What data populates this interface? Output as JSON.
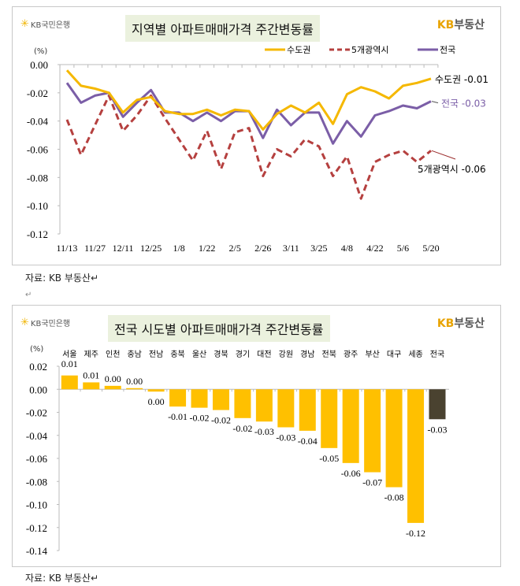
{
  "brand": {
    "bank": "KB국민은행",
    "bank_mark": "KB",
    "realestate_prefix": "KB",
    "realestate_suffix": "부동산"
  },
  "captions": [
    "자료: KB 부동산↵",
    "자료: KB 부동산↵"
  ],
  "paragraph_mark": "↵",
  "chart_data": [
    {
      "type": "line",
      "title": "지역별 아파트매매가격 주간변동률",
      "ylabel": "(%)",
      "ylim": [
        -0.12,
        0.0
      ],
      "yticks": [
        "0.00",
        "-0.02",
        "-0.04",
        "-0.06",
        "-0.08",
        "-0.10",
        "-0.12"
      ],
      "x_tick_labels": [
        "11/13",
        "11/27",
        "12/11",
        "12/25",
        "1/8",
        "1/22",
        "2/5",
        "2/26",
        "3/11",
        "3/25",
        "4/8",
        "4/22",
        "5/6",
        "5/20"
      ],
      "legend_position": "top-right",
      "grid": false,
      "series": [
        {
          "name": "수도권",
          "color": "#f5b800",
          "style": "solid",
          "end_label": "수도권 -0.01",
          "values": [
            -0.004,
            -0.015,
            -0.017,
            -0.02,
            -0.034,
            -0.025,
            -0.023,
            -0.033,
            -0.035,
            -0.035,
            -0.032,
            -0.036,
            -0.032,
            -0.033,
            -0.046,
            -0.035,
            -0.029,
            -0.034,
            -0.027,
            -0.042,
            -0.021,
            -0.016,
            -0.019,
            -0.024,
            -0.015,
            -0.013,
            -0.01
          ]
        },
        {
          "name": "5개광역시",
          "color": "#b5403f",
          "style": "dashed",
          "end_label": "5개광역시 -0.06",
          "values": [
            -0.039,
            -0.064,
            -0.043,
            -0.022,
            -0.047,
            -0.036,
            -0.022,
            -0.038,
            -0.053,
            -0.068,
            -0.047,
            -0.074,
            -0.048,
            -0.045,
            -0.079,
            -0.06,
            -0.065,
            -0.053,
            -0.058,
            -0.079,
            -0.065,
            -0.095,
            -0.069,
            -0.064,
            -0.061,
            -0.069,
            -0.061
          ]
        },
        {
          "name": "전국",
          "color": "#7b5ea7",
          "style": "solid",
          "end_label": "전국 -0.03",
          "values": [
            -0.013,
            -0.027,
            -0.022,
            -0.02,
            -0.037,
            -0.027,
            -0.018,
            -0.034,
            -0.034,
            -0.04,
            -0.034,
            -0.04,
            -0.033,
            -0.033,
            -0.052,
            -0.032,
            -0.043,
            -0.034,
            -0.034,
            -0.056,
            -0.04,
            -0.051,
            -0.036,
            -0.033,
            -0.029,
            -0.031,
            -0.026
          ]
        }
      ]
    },
    {
      "type": "bar",
      "title": "전국 시도별 아파트매매가격 주간변동률",
      "ylabel": "(%)",
      "ylim": [
        -0.14,
        0.02
      ],
      "yticks": [
        "0.02",
        "0.00",
        "-0.02",
        "-0.04",
        "-0.06",
        "-0.08",
        "-0.10",
        "-0.12",
        "-0.14"
      ],
      "grid": false,
      "categories": [
        "서울",
        "제주",
        "인천",
        "충남",
        "전남",
        "충북",
        "울산",
        "경북",
        "경기",
        "대전",
        "강원",
        "경남",
        "전북",
        "광주",
        "부산",
        "대구",
        "세종",
        "전국"
      ],
      "values": [
        0.012,
        0.006,
        0.003,
        0.001,
        -0.002,
        -0.015,
        -0.016,
        -0.018,
        -0.025,
        -0.028,
        -0.033,
        -0.036,
        -0.051,
        -0.064,
        -0.072,
        -0.085,
        -0.116,
        -0.026
      ],
      "data_labels": [
        "0.01",
        "0.01",
        "0.00",
        "0.00",
        "0.00",
        "-0.01",
        "-0.02",
        "-0.02",
        "-0.02",
        "-0.03",
        "-0.03",
        "-0.04",
        "-0.05",
        "-0.06",
        "-0.07",
        "-0.08",
        "-0.12",
        "-0.03"
      ],
      "colors": {
        "region": "#ffc000",
        "national": "#4a4230"
      }
    }
  ]
}
